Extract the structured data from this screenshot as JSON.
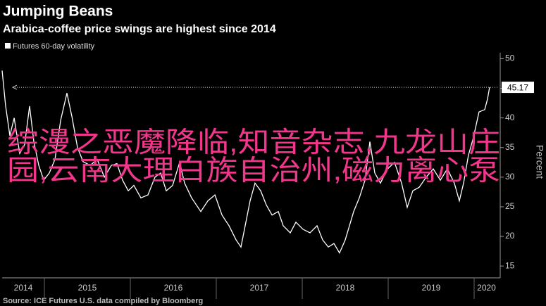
{
  "chart_data": {
    "type": "line",
    "title": "Jumping Beans",
    "subtitle": "Arabica-coffee price swings are highest since 2014",
    "source": "Source: ICE Futures U.S. data compiled by Bloomberg",
    "y_axis_label": "Percent",
    "overlay_text": [
      "综漫之恶魔降临,知音杂志,九龙山庄",
      "园,云南大理白族自治州,磁力离心泵"
    ],
    "annotation": {
      "value": 45.17,
      "label": "45.17"
    },
    "x": [
      2014.508,
      2014.549,
      2014.598,
      2014.648,
      2014.713,
      2014.77,
      2014.828,
      2014.877,
      2014.934,
      2014.992,
      2015.057,
      2015.123,
      2015.189,
      2015.262,
      2015.32,
      2015.385,
      2015.451,
      2015.533,
      2015.615,
      2015.697,
      2015.779,
      2015.844,
      2015.91,
      2015.975,
      2016.041,
      2016.123,
      2016.205,
      2016.287,
      2016.352,
      2016.418,
      2016.492,
      2016.574,
      2016.631,
      2016.713,
      2016.82,
      2016.902,
      2016.984,
      2017.066,
      2017.148,
      2017.23,
      2017.287,
      2017.336,
      2017.393,
      2017.451,
      2017.516,
      2017.582,
      2017.648,
      2017.721,
      2017.779,
      2017.861,
      2017.926,
      2018.008,
      2018.09,
      2018.172,
      2018.238,
      2018.303,
      2018.369,
      2018.434,
      2018.5,
      2018.549,
      2018.598,
      2018.664,
      2018.73,
      2018.787,
      2018.844,
      2018.91,
      2018.992,
      2019.074,
      2019.156,
      2019.221,
      2019.287,
      2019.361,
      2019.443,
      2019.525,
      2019.607,
      2019.689,
      2019.77,
      2019.828,
      2019.877,
      2019.934,
      2019.992,
      2020.057,
      2020.123,
      2020.156,
      2020.18
    ],
    "series": [
      {
        "name": "Futures 60-day volatility",
        "color": "#ffffff",
        "values": [
          48,
          42,
          37,
          40,
          34,
          35.5,
          42,
          36,
          32,
          29.5,
          30.7,
          33,
          39.6,
          44.2,
          40.2,
          35,
          32.6,
          32,
          33,
          30,
          32,
          32.3,
          29.5,
          27.7,
          28.6,
          26.5,
          27,
          30,
          30.7,
          27.7,
          28.6,
          32.5,
          29,
          26.5,
          24.2,
          26,
          27,
          23.6,
          21.8,
          19.4,
          18.2,
          21.8,
          26,
          29,
          27.7,
          25.3,
          23.6,
          24.2,
          21.8,
          20.6,
          22.4,
          21.2,
          20.6,
          21.8,
          19.4,
          18.2,
          18.8,
          17.2,
          19.4,
          21.8,
          24.2,
          26.5,
          29.5,
          36,
          30.7,
          29,
          31.4,
          32.5,
          29,
          24.9,
          27.7,
          28.3,
          30,
          31.4,
          29.5,
          31.4,
          29,
          26,
          29,
          33.7,
          36.7,
          41,
          41.4,
          43.2,
          45.17
        ]
      }
    ],
    "xlim": [
      2014.508,
      2020.287
    ],
    "xticks": [
      2014,
      2015,
      2016,
      2017,
      2018,
      2019,
      2020
    ],
    "ylim": [
      13,
      51
    ],
    "yticks": [
      15,
      20,
      25,
      30,
      35,
      40,
      45,
      50
    ]
  }
}
